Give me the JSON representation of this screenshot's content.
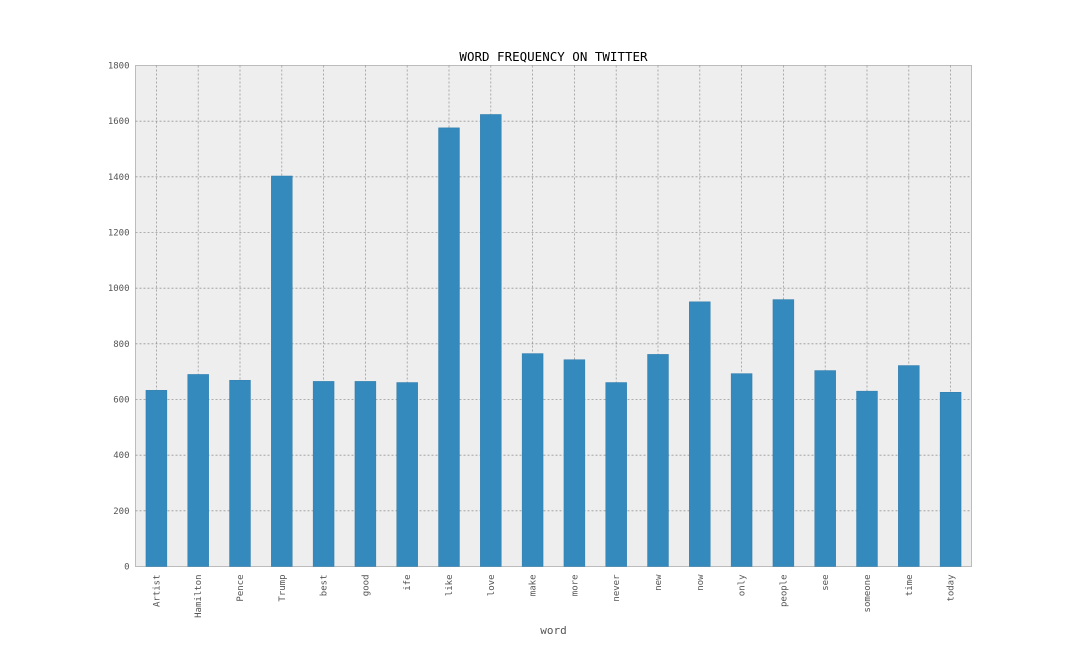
{
  "chart_data": {
    "type": "bar",
    "title": "WORD FREQUENCY ON TWITTER",
    "xlabel": "word",
    "ylabel": "",
    "ylim": [
      0,
      1800
    ],
    "yticks": [
      0,
      200,
      400,
      600,
      800,
      1000,
      1200,
      1400,
      1600,
      1800
    ],
    "grid": true,
    "bar_color": "#348abd",
    "plot_background": "#eeeeee",
    "categories": [
      "Artist",
      "Hamilton",
      "Pence",
      "Trump",
      "best",
      "good",
      "ife",
      "like",
      "love",
      "make",
      "more",
      "never",
      "new",
      "now",
      "only",
      "people",
      "see",
      "someone",
      "time",
      "today"
    ],
    "values": [
      633,
      690,
      669,
      1403,
      665,
      665,
      661,
      1576,
      1624,
      765,
      743,
      661,
      762,
      951,
      693,
      959,
      704,
      630,
      722,
      626
    ]
  }
}
